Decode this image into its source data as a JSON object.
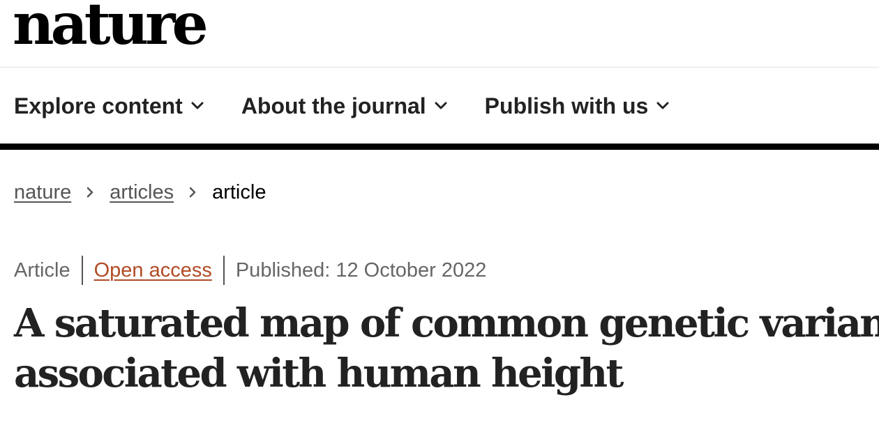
{
  "header": {
    "logo_text": "nature"
  },
  "nav": {
    "items": [
      {
        "label": "Explore content",
        "icon": "chevron-down-icon"
      },
      {
        "label": "About the journal",
        "icon": "chevron-down-icon"
      },
      {
        "label": "Publish with us",
        "icon": "chevron-down-icon"
      }
    ]
  },
  "breadcrumb": {
    "items": [
      {
        "label": "nature",
        "link": true
      },
      {
        "label": "articles",
        "link": true
      },
      {
        "label": "article",
        "link": false
      }
    ],
    "separator_icon": "chevron-right-icon"
  },
  "article": {
    "type": "Article",
    "access": "Open access",
    "published": "Published: 12 October 2022",
    "title_line1": "A saturated map of common genetic variants",
    "title_line2": "associated with human height"
  },
  "colors": {
    "text": "#222222",
    "muted": "#666666",
    "link": "#555555",
    "open_access": "#b24b25",
    "rule": "#000000"
  }
}
